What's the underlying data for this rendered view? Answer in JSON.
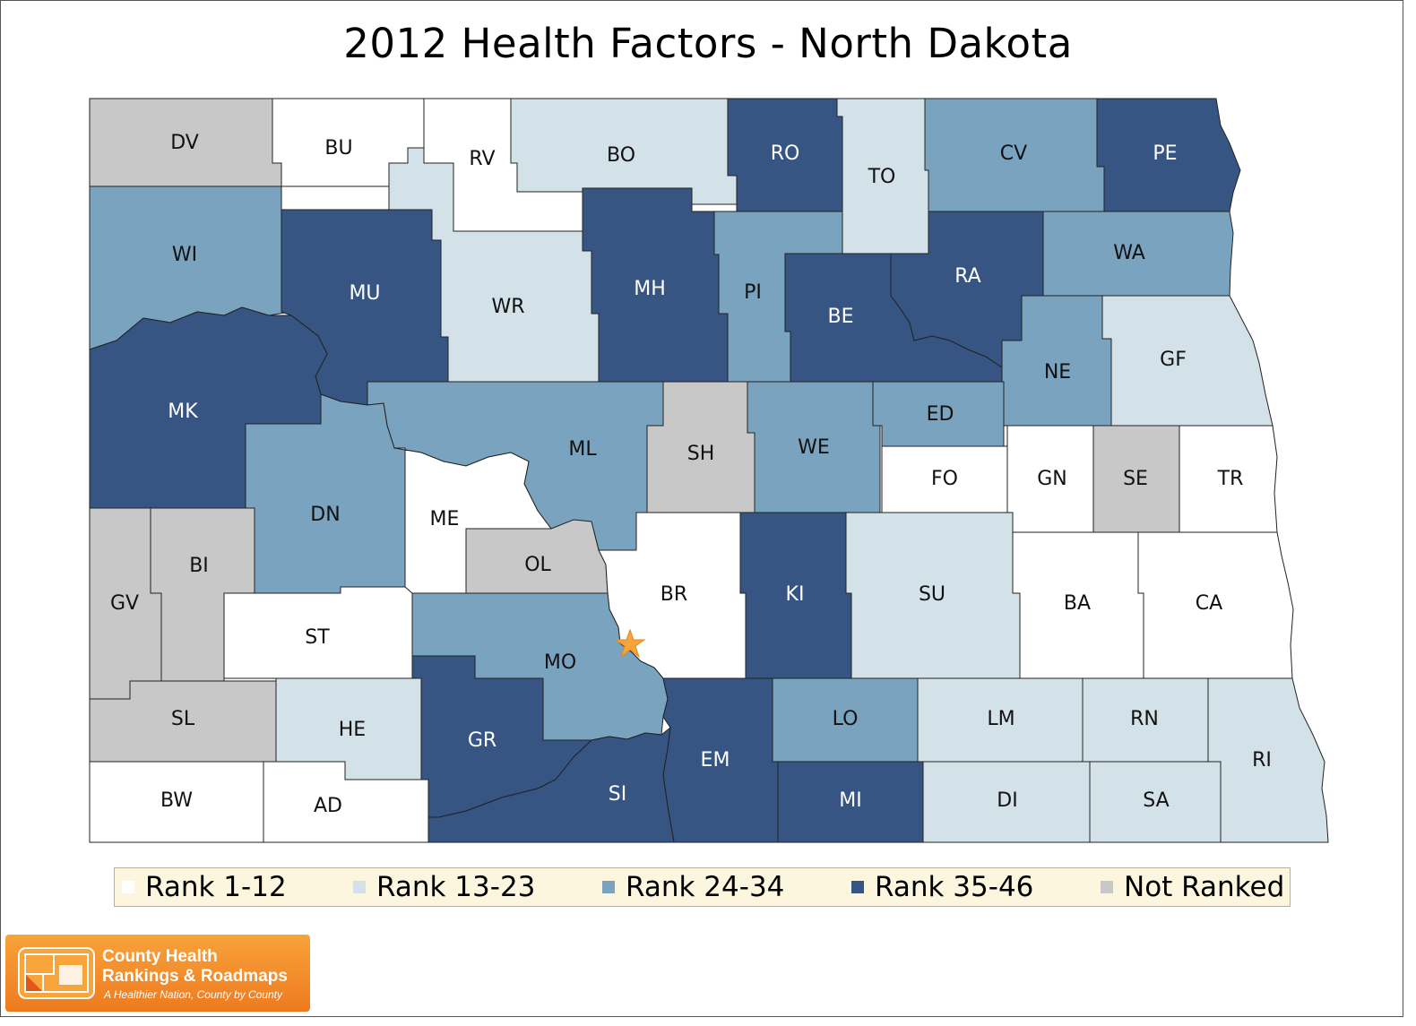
{
  "title": "2012 Health Factors - North Dakota",
  "colors": {
    "rank_1_12": "#ffffff",
    "rank_13_23": "#d3e1e9",
    "rank_24_34": "#7aa3bf",
    "rank_35_46": "#365583",
    "not_ranked": "#c8c8c8",
    "legend_bg": "#fdf6de",
    "logo_orange": "#f39327"
  },
  "legend": [
    {
      "label": "Rank 1-12",
      "class": "rank_1_12"
    },
    {
      "label": "Rank 13-23",
      "class": "rank_13_23"
    },
    {
      "label": "Rank 24-34",
      "class": "rank_24_34"
    },
    {
      "label": "Rank 35-46",
      "class": "rank_35_46"
    },
    {
      "label": "Not Ranked",
      "class": "not_ranked"
    }
  ],
  "counties": [
    {
      "abbr": "DV",
      "class": "not_ranked"
    },
    {
      "abbr": "BU",
      "class": "rank_1_12"
    },
    {
      "abbr": "RV",
      "class": "rank_1_12"
    },
    {
      "abbr": "BO",
      "class": "rank_13_23"
    },
    {
      "abbr": "RO",
      "class": "rank_35_46"
    },
    {
      "abbr": "TO",
      "class": "rank_13_23"
    },
    {
      "abbr": "CV",
      "class": "rank_24_34"
    },
    {
      "abbr": "PE",
      "class": "rank_35_46"
    },
    {
      "abbr": "WI",
      "class": "rank_24_34"
    },
    {
      "abbr": "MU",
      "class": "rank_35_46"
    },
    {
      "abbr": "WR",
      "class": "rank_13_23"
    },
    {
      "abbr": "MH",
      "class": "rank_35_46"
    },
    {
      "abbr": "PI",
      "class": "rank_24_34"
    },
    {
      "abbr": "BE",
      "class": "rank_35_46"
    },
    {
      "abbr": "RA",
      "class": "rank_35_46"
    },
    {
      "abbr": "WA",
      "class": "rank_24_34"
    },
    {
      "abbr": "NE",
      "class": "rank_24_34"
    },
    {
      "abbr": "GF",
      "class": "rank_13_23"
    },
    {
      "abbr": "MK",
      "class": "rank_35_46"
    },
    {
      "abbr": "ML",
      "class": "rank_24_34"
    },
    {
      "abbr": "SH",
      "class": "not_ranked"
    },
    {
      "abbr": "WE",
      "class": "rank_24_34"
    },
    {
      "abbr": "ED",
      "class": "rank_24_34"
    },
    {
      "abbr": "FO",
      "class": "rank_1_12"
    },
    {
      "abbr": "GN",
      "class": "rank_1_12"
    },
    {
      "abbr": "SE",
      "class": "not_ranked"
    },
    {
      "abbr": "TR",
      "class": "rank_1_12"
    },
    {
      "abbr": "DN",
      "class": "rank_24_34"
    },
    {
      "abbr": "ME",
      "class": "rank_1_12"
    },
    {
      "abbr": "OL",
      "class": "not_ranked"
    },
    {
      "abbr": "BR",
      "class": "rank_1_12"
    },
    {
      "abbr": "KI",
      "class": "rank_35_46"
    },
    {
      "abbr": "SU",
      "class": "rank_13_23"
    },
    {
      "abbr": "BA",
      "class": "rank_1_12"
    },
    {
      "abbr": "CA",
      "class": "rank_1_12"
    },
    {
      "abbr": "GV",
      "class": "not_ranked"
    },
    {
      "abbr": "BI",
      "class": "not_ranked"
    },
    {
      "abbr": "ST",
      "class": "rank_1_12"
    },
    {
      "abbr": "MO",
      "class": "rank_24_34"
    },
    {
      "abbr": "SL",
      "class": "not_ranked"
    },
    {
      "abbr": "HE",
      "class": "rank_13_23"
    },
    {
      "abbr": "GR",
      "class": "rank_35_46"
    },
    {
      "abbr": "EM",
      "class": "rank_35_46"
    },
    {
      "abbr": "LO",
      "class": "rank_24_34"
    },
    {
      "abbr": "LM",
      "class": "rank_13_23"
    },
    {
      "abbr": "RN",
      "class": "rank_13_23"
    },
    {
      "abbr": "RI",
      "class": "rank_13_23"
    },
    {
      "abbr": "SI",
      "class": "rank_35_46"
    },
    {
      "abbr": "MI",
      "class": "rank_35_46"
    },
    {
      "abbr": "DI",
      "class": "rank_13_23"
    },
    {
      "abbr": "SA",
      "class": "rank_13_23"
    },
    {
      "abbr": "BW",
      "class": "rank_1_12"
    },
    {
      "abbr": "AD",
      "class": "rank_1_12"
    }
  ],
  "capital_marker": "star",
  "logo": {
    "line1": "County Health",
    "line2": "Rankings & Roadmaps",
    "tagline": "A Healthier Nation, County by County"
  }
}
